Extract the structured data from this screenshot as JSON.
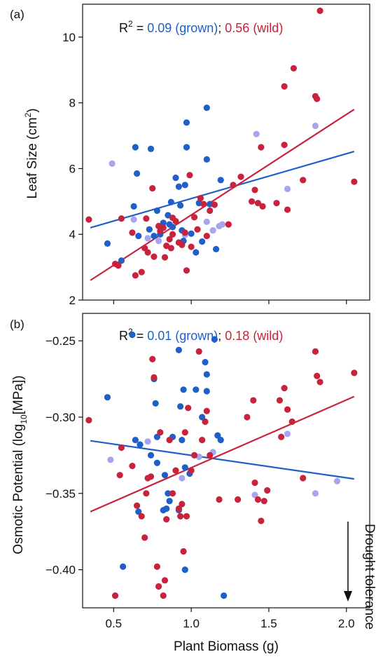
{
  "colors": {
    "grown": "#1f5fc8",
    "grown_light": "#a6a6ee",
    "wild": "#c8233c",
    "axis": "#111111"
  },
  "chart_data": [
    {
      "type": "scatter",
      "panel_label": "(a)",
      "ylabel_main": "Leaf Size (cm",
      "ylabel_sup": "2",
      "ylabel_end": ")",
      "xlim": [
        0.3,
        2.15
      ],
      "ylim": [
        2,
        11
      ],
      "yticks": [
        2,
        4,
        6,
        8,
        10
      ],
      "yticklabels": [
        "2",
        "4",
        "6",
        "8",
        "10"
      ],
      "xticks": [
        0.5,
        1.0,
        1.5,
        2.0
      ],
      "annotation": {
        "r_prefix": "R",
        "r_sup": "2",
        "equals": " = ",
        "grown_text": "0.09 (grown)",
        "sep": "; ",
        "wild_text": "0.56 (wild)"
      },
      "fit_lines": [
        {
          "group": "grown",
          "x": [
            0.35,
            2.05
          ],
          "y": [
            4.2,
            6.52
          ]
        },
        {
          "group": "wild",
          "x": [
            0.35,
            2.05
          ],
          "y": [
            2.6,
            7.8
          ]
        }
      ],
      "series": [
        {
          "group": "grown",
          "points": [
            [
              0.46,
              3.72
            ],
            [
              0.55,
              3.2
            ],
            [
              0.63,
              4.85
            ],
            [
              0.64,
              6.65
            ],
            [
              0.65,
              5.85
            ],
            [
              0.66,
              3.95
            ],
            [
              0.73,
              4.15
            ],
            [
              0.74,
              6.6
            ],
            [
              0.76,
              3.95
            ],
            [
              0.78,
              4.72
            ],
            [
              0.8,
              4.0
            ],
            [
              0.82,
              4.35
            ],
            [
              0.85,
              4.58
            ],
            [
              0.86,
              4.3
            ],
            [
              0.87,
              4.98
            ],
            [
              0.88,
              4.22
            ],
            [
              0.9,
              5.72
            ],
            [
              0.92,
              5.45
            ],
            [
              0.93,
              4.88
            ],
            [
              0.94,
              4.12
            ],
            [
              0.95,
              3.8
            ],
            [
              0.96,
              5.5
            ],
            [
              0.97,
              6.65
            ],
            [
              0.97,
              7.4
            ],
            [
              1.0,
              4.02
            ],
            [
              1.03,
              3.45
            ],
            [
              1.05,
              4.95
            ],
            [
              1.07,
              3.78
            ],
            [
              1.1,
              7.85
            ],
            [
              1.1,
              6.28
            ],
            [
              1.12,
              4.92
            ],
            [
              1.16,
              3.55
            ],
            [
              1.19,
              5.65
            ]
          ]
        },
        {
          "group": "grown_light",
          "points": [
            [
              0.49,
              6.15
            ],
            [
              0.63,
              4.45
            ],
            [
              0.72,
              3.88
            ],
            [
              0.79,
              3.8
            ],
            [
              0.96,
              3.98
            ],
            [
              1.1,
              4.38
            ],
            [
              1.14,
              4.12
            ],
            [
              1.18,
              4.25
            ],
            [
              1.2,
              4.3
            ],
            [
              1.42,
              7.05
            ],
            [
              1.62,
              5.38
            ],
            [
              1.8,
              7.3
            ]
          ]
        },
        {
          "group": "wild",
          "points": [
            [
              0.34,
              4.45
            ],
            [
              0.51,
              3.1
            ],
            [
              0.53,
              3.05
            ],
            [
              0.55,
              4.48
            ],
            [
              0.62,
              4.05
            ],
            [
              0.64,
              2.75
            ],
            [
              0.68,
              2.85
            ],
            [
              0.7,
              3.58
            ],
            [
              0.71,
              4.48
            ],
            [
              0.72,
              3.45
            ],
            [
              0.75,
              5.4
            ],
            [
              0.76,
              3.32
            ],
            [
              0.79,
              4.25
            ],
            [
              0.8,
              4.1
            ],
            [
              0.82,
              4.2
            ],
            [
              0.83,
              3.3
            ],
            [
              0.84,
              3.65
            ],
            [
              0.86,
              3.85
            ],
            [
              0.87,
              3.58
            ],
            [
              0.88,
              4.0
            ],
            [
              0.88,
              4.5
            ],
            [
              0.9,
              4.4
            ],
            [
              0.92,
              3.75
            ],
            [
              0.94,
              3.68
            ],
            [
              0.96,
              4.05
            ],
            [
              0.97,
              2.9
            ],
            [
              0.99,
              5.8
            ],
            [
              1.0,
              3.62
            ],
            [
              1.02,
              4.52
            ],
            [
              1.04,
              4.15
            ],
            [
              1.06,
              5.1
            ],
            [
              1.08,
              4.92
            ],
            [
              1.1,
              3.95
            ],
            [
              1.12,
              4.72
            ],
            [
              1.15,
              4.9
            ],
            [
              1.24,
              4.3
            ],
            [
              1.27,
              5.5
            ],
            [
              1.32,
              5.75
            ],
            [
              1.39,
              5.0
            ],
            [
              1.41,
              5.35
            ],
            [
              1.43,
              4.95
            ],
            [
              1.45,
              6.65
            ],
            [
              1.46,
              4.85
            ],
            [
              1.55,
              4.95
            ],
            [
              1.6,
              6.72
            ],
            [
              1.6,
              8.5
            ],
            [
              1.62,
              4.75
            ],
            [
              1.66,
              9.05
            ],
            [
              1.72,
              5.65
            ],
            [
              1.8,
              8.2
            ],
            [
              1.81,
              8.12
            ],
            [
              1.83,
              10.8
            ],
            [
              2.05,
              5.6
            ]
          ]
        }
      ]
    },
    {
      "type": "scatter",
      "panel_label": "(b)",
      "xlabel": "Plant Biomass (g)",
      "ylabel_main": "Osmotic Potential (log",
      "ylabel_sub": "10",
      "ylabel_end": "[MPa])",
      "xlim": [
        0.3,
        2.15
      ],
      "ylim": [
        -0.425,
        -0.232
      ],
      "yticks": [
        -0.25,
        -0.3,
        -0.35,
        -0.4
      ],
      "yticklabels": [
        "−0.25",
        "−0.30",
        "−0.35",
        "−0.40"
      ],
      "xticks": [
        0.5,
        1.0,
        1.5,
        2.0
      ],
      "xticklabels": [
        "0.5",
        "1.0",
        "1.5",
        "2.0"
      ],
      "annotation": {
        "r_prefix": "R",
        "r_sup": "2",
        "equals": " = ",
        "grown_text": "0.01 (grown)",
        "sep": "; ",
        "wild_text": "0.18 (wild)"
      },
      "arrow_label": "Drought tolerance",
      "fit_lines": [
        {
          "group": "grown",
          "x": [
            0.35,
            2.05
          ],
          "y": [
            -0.3155,
            -0.3405
          ]
        },
        {
          "group": "wild",
          "x": [
            0.35,
            2.05
          ],
          "y": [
            -0.362,
            -0.2865
          ]
        }
      ],
      "series": [
        {
          "group": "grown",
          "points": [
            [
              0.46,
              -0.287
            ],
            [
              0.56,
              -0.398
            ],
            [
              0.62,
              -0.246
            ],
            [
              0.64,
              -0.315
            ],
            [
              0.66,
              -0.362
            ],
            [
              0.67,
              -0.318
            ],
            [
              0.74,
              -0.325
            ],
            [
              0.76,
              -0.275
            ],
            [
              0.77,
              -0.291
            ],
            [
              0.78,
              -0.313
            ],
            [
              0.78,
              -0.33
            ],
            [
              0.82,
              -0.361
            ],
            [
              0.83,
              -0.338
            ],
            [
              0.84,
              -0.36
            ],
            [
              0.85,
              -0.35
            ],
            [
              0.86,
              -0.355
            ],
            [
              0.88,
              -0.313
            ],
            [
              0.92,
              -0.256
            ],
            [
              0.92,
              -0.361
            ],
            [
              0.93,
              -0.293
            ],
            [
              0.94,
              -0.315
            ],
            [
              0.95,
              -0.282
            ],
            [
              0.96,
              -0.333
            ],
            [
              0.96,
              -0.4
            ],
            [
              0.99,
              -0.337
            ],
            [
              1.03,
              -0.282
            ],
            [
              1.07,
              -0.3
            ],
            [
              1.09,
              -0.264
            ],
            [
              1.1,
              -0.272
            ],
            [
              1.1,
              -0.283
            ],
            [
              1.15,
              -0.249
            ],
            [
              1.17,
              -0.312
            ],
            [
              1.19,
              -0.315
            ],
            [
              1.21,
              -0.417
            ]
          ]
        },
        {
          "group": "grown_light",
          "points": [
            [
              0.48,
              -0.328
            ],
            [
              0.72,
              -0.316
            ],
            [
              0.94,
              -0.34
            ],
            [
              1.05,
              -0.326
            ],
            [
              1.14,
              -0.323
            ],
            [
              1.41,
              -0.351
            ],
            [
              1.62,
              -0.311
            ],
            [
              1.8,
              -0.35
            ],
            [
              1.94,
              -0.342
            ]
          ]
        },
        {
          "group": "wild",
          "points": [
            [
              0.34,
              -0.302
            ],
            [
              0.51,
              -0.417
            ],
            [
              0.54,
              -0.338
            ],
            [
              0.55,
              -0.32
            ],
            [
              0.62,
              -0.332
            ],
            [
              0.65,
              -0.358
            ],
            [
              0.68,
              -0.365
            ],
            [
              0.7,
              -0.379
            ],
            [
              0.71,
              -0.35
            ],
            [
              0.72,
              -0.34
            ],
            [
              0.74,
              -0.339
            ],
            [
              0.75,
              -0.262
            ],
            [
              0.76,
              -0.274
            ],
            [
              0.78,
              -0.398
            ],
            [
              0.79,
              -0.411
            ],
            [
              0.8,
              -0.31
            ],
            [
              0.82,
              -0.417
            ],
            [
              0.83,
              -0.407
            ],
            [
              0.84,
              -0.367
            ],
            [
              0.86,
              -0.315
            ],
            [
              0.88,
              -0.35
            ],
            [
              0.9,
              -0.335
            ],
            [
              0.92,
              -0.36
            ],
            [
              0.93,
              -0.365
            ],
            [
              0.94,
              -0.357
            ],
            [
              0.95,
              -0.388
            ],
            [
              0.96,
              -0.31
            ],
            [
              0.97,
              -0.365
            ],
            [
              0.98,
              -0.294
            ],
            [
              1.0,
              -0.335
            ],
            [
              1.02,
              -0.325
            ],
            [
              1.05,
              -0.257
            ],
            [
              1.07,
              -0.315
            ],
            [
              1.09,
              -0.303
            ],
            [
              1.1,
              -0.296
            ],
            [
              1.12,
              -0.325
            ],
            [
              1.18,
              -0.354
            ],
            [
              1.3,
              -0.354
            ],
            [
              1.36,
              -0.3
            ],
            [
              1.4,
              -0.289
            ],
            [
              1.41,
              -0.343
            ],
            [
              1.43,
              -0.354
            ],
            [
              1.45,
              -0.368
            ],
            [
              1.47,
              -0.355
            ],
            [
              1.49,
              -0.348
            ],
            [
              1.57,
              -0.289
            ],
            [
              1.58,
              -0.313
            ],
            [
              1.6,
              -0.281
            ],
            [
              1.62,
              -0.295
            ],
            [
              1.65,
              -0.303
            ],
            [
              1.72,
              -0.34
            ],
            [
              1.8,
              -0.257
            ],
            [
              1.81,
              -0.273
            ],
            [
              1.83,
              -0.277
            ],
            [
              2.05,
              -0.271
            ]
          ]
        }
      ]
    }
  ]
}
